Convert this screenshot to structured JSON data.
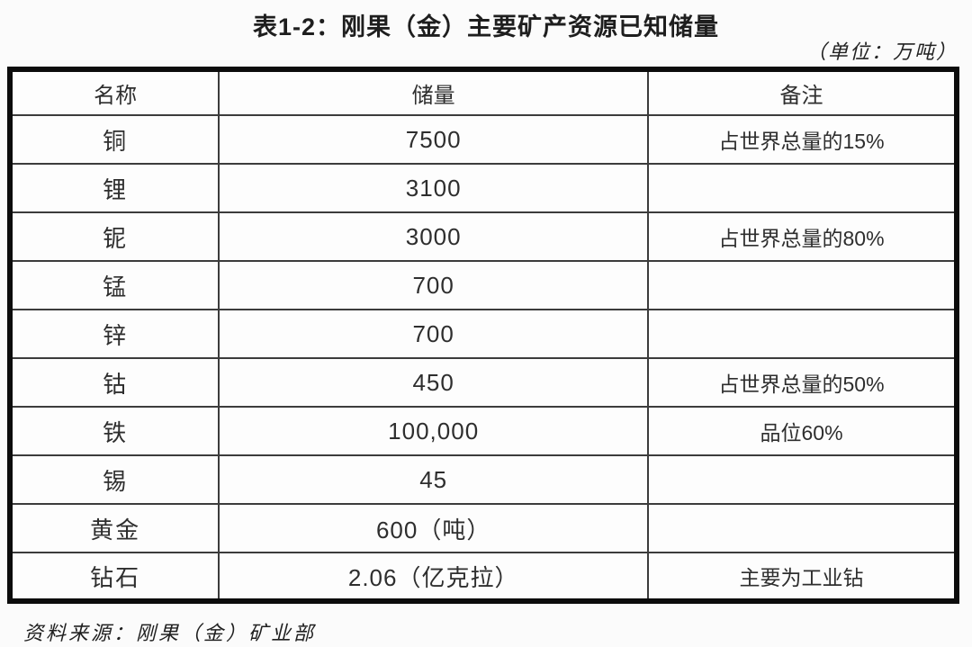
{
  "title": "表1-2：刚果（金）主要矿产资源已知储量",
  "unit_note": "（单位：万吨）",
  "source": "资料来源：刚果（金）矿业部",
  "table": {
    "columns": [
      "名称",
      "储量",
      "备注"
    ],
    "rows": [
      {
        "name": "铜",
        "reserve": "7500",
        "note": "占世界总量的15%"
      },
      {
        "name": "锂",
        "reserve": "3100",
        "note": ""
      },
      {
        "name": "铌",
        "reserve": "3000",
        "note": "占世界总量的80%"
      },
      {
        "name": "锰",
        "reserve": "700",
        "note": ""
      },
      {
        "name": "锌",
        "reserve": "700",
        "note": ""
      },
      {
        "name": "钴",
        "reserve": "450",
        "note": "占世界总量的50%"
      },
      {
        "name": "铁",
        "reserve": "100,000",
        "note": "品位60%"
      },
      {
        "name": "锡",
        "reserve": "45",
        "note": ""
      },
      {
        "name": "黄金",
        "reserve": "600（吨）",
        "note": ""
      },
      {
        "name": "钻石",
        "reserve": "2.06（亿克拉）",
        "note": "主要为工业钻"
      }
    ]
  },
  "chart_data": {
    "type": "table",
    "title": "表1-2：刚果（金）主要矿产资源已知储量",
    "unit": "万吨",
    "columns": [
      "名称",
      "储量",
      "备注"
    ],
    "rows": [
      [
        "铜",
        "7500",
        "占世界总量的15%"
      ],
      [
        "锂",
        "3100",
        ""
      ],
      [
        "铌",
        "3000",
        "占世界总量的80%"
      ],
      [
        "锰",
        "700",
        ""
      ],
      [
        "锌",
        "700",
        ""
      ],
      [
        "钴",
        "450",
        "占世界总量的50%"
      ],
      [
        "铁",
        "100,000",
        "品位60%"
      ],
      [
        "锡",
        "45",
        ""
      ],
      [
        "黄金",
        "600（吨）",
        ""
      ],
      [
        "钻石",
        "2.06（亿克拉）",
        "主要为工业钻"
      ]
    ],
    "source": "资料来源：刚果（金）矿业部"
  }
}
